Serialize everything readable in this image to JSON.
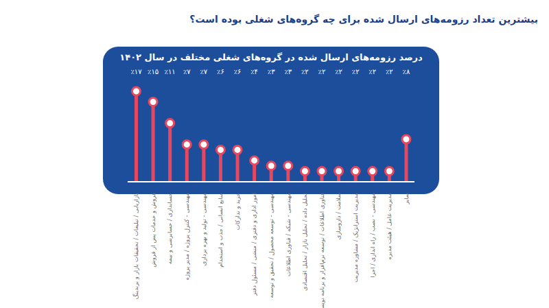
{
  "chart_data": {
    "type": "lollipop",
    "title": "بیشترین تعداد رزومه‌های ارسال شده برای چه گروه‌های شغلی بوده است؟",
    "subtitle": "درصد رزومه‌های ارسال شده در گروه‌های شغلی مختلف در سال ۱۴۰۲",
    "categories": [
      "بازاریابی / تبلیغات / تحقیقات بازار و برندینگ",
      "فروش و خدمات پس از فروش",
      "حسابداری / حسابرسی و بیمه",
      "مهندسی - کنترل پروژه / مدیر پروژه",
      "مهندسی - تولید و بهره برداری",
      "منابع انسانی / جذب و استخدام",
      "خرید و تدارکات",
      "امور اداری و دفتری / منشی / مسئول دفتر",
      "مهندسی - توسعه محصول / تحقیق و توسعه",
      "مهندسی - شبکه / فناوری اطلاعات",
      "تحلیل داده / تحلیل بازار / تحلیل اقتصادی",
      "فناوری اطلاعات / توسعه نرم‌افزار و برنامه نویسی",
      "سلامت / داروسازی",
      "مدیریت استراتژیک / مشاوره مدیریت",
      "مهندسی - نصب / راه اندازی / اجرا",
      "مدیریت عامل / هیئت مدیره",
      "سایر"
    ],
    "values": [
      17,
      15,
      11,
      7,
      7,
      6,
      6,
      4,
      3,
      3,
      2,
      2,
      2,
      2,
      2,
      2,
      8
    ],
    "value_labels": [
      "٪۱۷",
      "٪۱۵",
      "٪۱۱",
      "٪۷",
      "٪۷",
      "٪۶",
      "٪۶",
      "٪۴",
      "٪۳",
      "٪۳",
      "٪۲",
      "٪۲",
      "٪۲",
      "٪۲",
      "٪۲",
      "٪۲",
      "٪۸"
    ],
    "color": "#e8485f",
    "ylim": [
      0,
      17
    ],
    "data_labels": true,
    "tick_labels": "x",
    "grid": false
  }
}
